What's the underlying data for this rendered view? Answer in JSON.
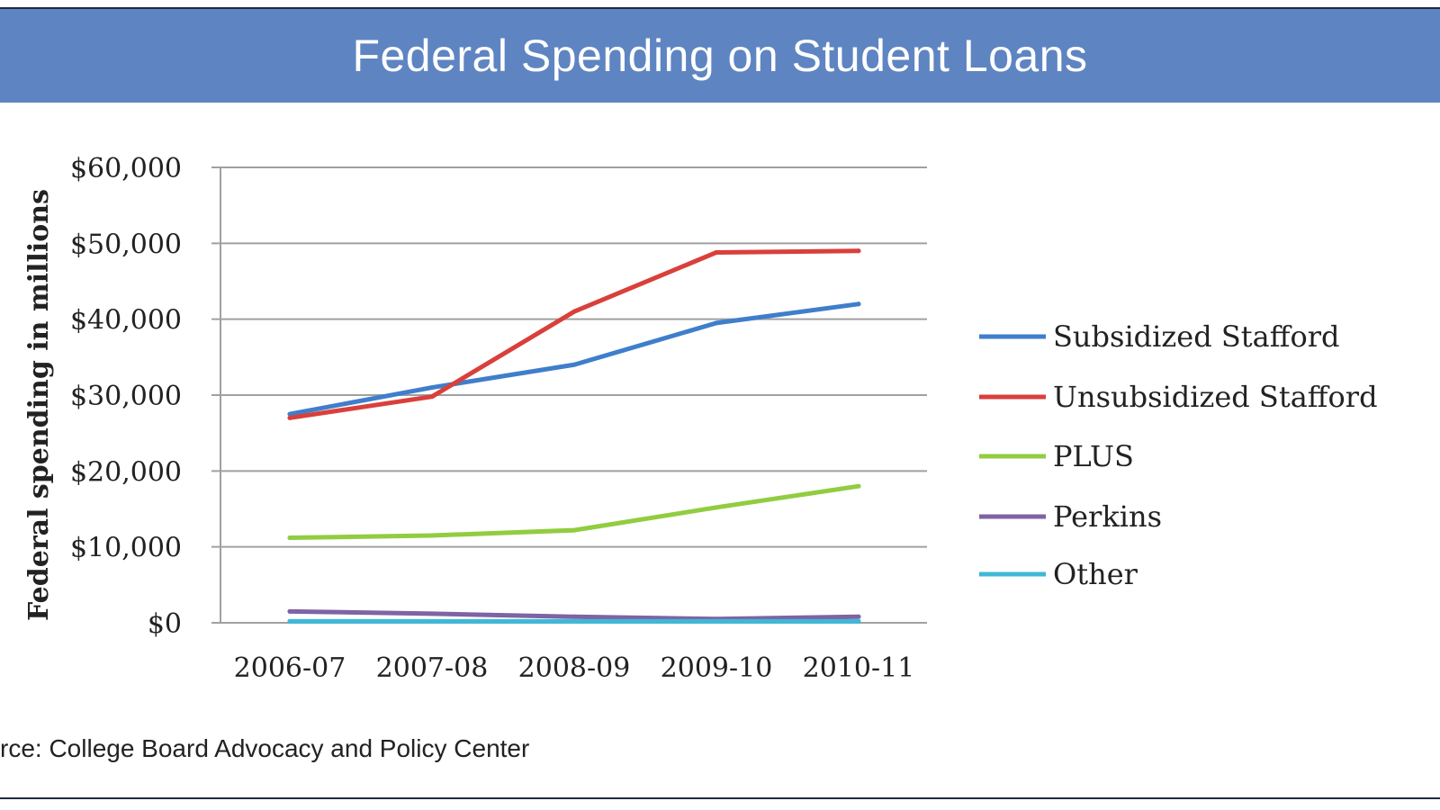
{
  "source_text": "rce: College Board Advocacy and Policy Center",
  "colors": {
    "title_bar": "#5e85c2",
    "grid": "#a0a0a0"
  },
  "chart_data": {
    "type": "line",
    "title": "Federal Spending on Student Loans",
    "ylabel": "Federal spending in millions",
    "xlabel": "",
    "categories": [
      "2006-07",
      "2007-08",
      "2008-09",
      "2009-10",
      "2010-11"
    ],
    "ylim": [
      0,
      60000
    ],
    "yticks": [
      0,
      10000,
      20000,
      30000,
      40000,
      50000,
      60000
    ],
    "ytick_labels": [
      "$0",
      "$10,000",
      "$20,000",
      "$30,000",
      "$40,000",
      "$50,000",
      "$60,000"
    ],
    "grid": true,
    "legend_position": "right",
    "series": [
      {
        "name": "Subsidized Stafford",
        "color": "#3f7ecb",
        "values": [
          27500,
          31000,
          34000,
          39500,
          42000
        ]
      },
      {
        "name": "Unsubsidized Stafford",
        "color": "#d9403b",
        "values": [
          27000,
          29800,
          41000,
          48800,
          49000
        ]
      },
      {
        "name": "PLUS",
        "color": "#92cc40",
        "values": [
          11200,
          11500,
          12200,
          15200,
          18000
        ]
      },
      {
        "name": "Perkins",
        "color": "#7f63a3",
        "values": [
          1500,
          1200,
          800,
          500,
          800
        ]
      },
      {
        "name": "Other",
        "color": "#3fb8d8",
        "values": [
          200,
          200,
          200,
          200,
          200
        ]
      }
    ]
  }
}
